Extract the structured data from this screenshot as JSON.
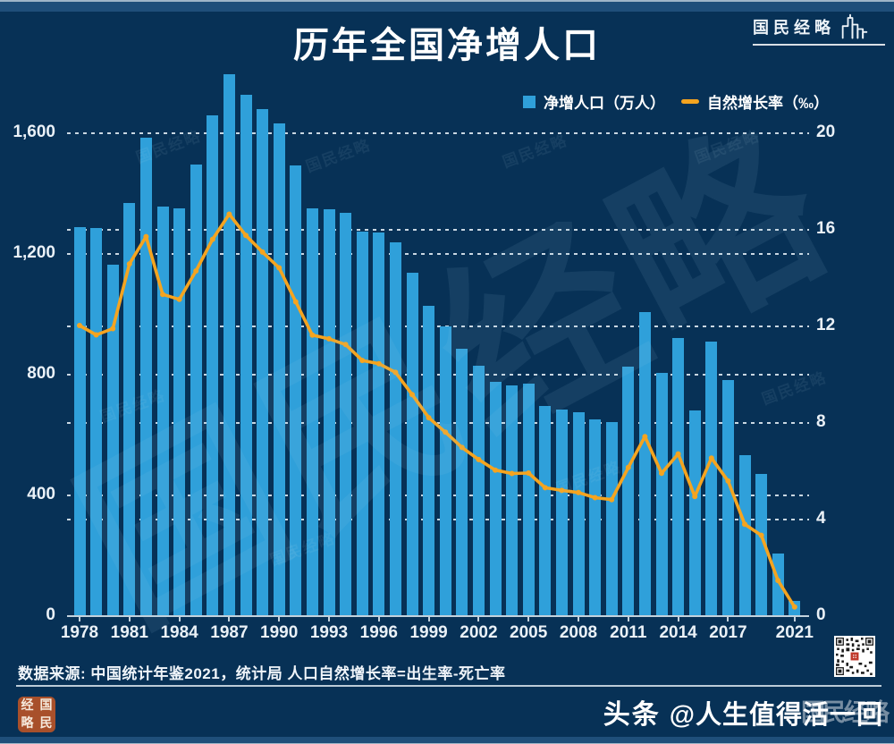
{
  "colors": {
    "bg": "#073156",
    "band": "#1F4F7A",
    "band_edge": "#9FB6C8",
    "bar": "#2FA0DA",
    "line": "#F5A41F",
    "text": "#EAF1F7",
    "grid": "rgba(235,244,250,0.85)",
    "axis": "#C3D2DD",
    "seal_bg": "#A8502B",
    "qr_center_red": "#C0392B"
  },
  "header": {
    "title": "历年全国净增人口",
    "logo_text": "国民经略"
  },
  "legend": {
    "items": [
      {
        "label": "净增人口（万人）",
        "swatch": "blue-square"
      },
      {
        "label": "自然增长率（‰）",
        "swatch": "orange-dash"
      }
    ]
  },
  "chart_data": {
    "type": "bar+line",
    "title": "历年全国净增人口",
    "x": [
      1978,
      1979,
      1980,
      1981,
      1982,
      1983,
      1984,
      1985,
      1986,
      1987,
      1988,
      1989,
      1990,
      1991,
      1992,
      1993,
      1994,
      1995,
      1996,
      1997,
      1998,
      1999,
      2000,
      2001,
      2002,
      2003,
      2004,
      2005,
      2006,
      2007,
      2008,
      2009,
      2010,
      2011,
      2012,
      2013,
      2014,
      2015,
      2016,
      2017,
      2018,
      2019,
      2020,
      2021
    ],
    "x_tick_labels": [
      1978,
      1981,
      1984,
      1987,
      1990,
      1993,
      1996,
      1999,
      2002,
      2005,
      2008,
      2011,
      2014,
      2017,
      2021
    ],
    "series": [
      {
        "name": "净增人口（万人）",
        "type": "bar",
        "axis": "left",
        "unit": "万人",
        "values": [
          1285,
          1283,
          1163,
          1367,
          1582,
          1354,
          1349,
          1494,
          1656,
          1793,
          1726,
          1678,
          1629,
          1490,
          1348,
          1346,
          1333,
          1271,
          1268,
          1237,
          1135,
          1025,
          957,
          884,
          826,
          774,
          761,
          768,
          692,
          681,
          673,
          648,
          641,
          825,
          1006,
          804,
          920,
          680,
          906,
          779,
          530,
          467,
          204,
          48
        ]
      },
      {
        "name": "自然增长率（‰）",
        "type": "line",
        "axis": "right",
        "unit": "‰",
        "values": [
          12.0,
          11.61,
          11.87,
          14.55,
          15.68,
          13.29,
          13.08,
          14.26,
          15.57,
          16.61,
          15.73,
          15.04,
          14.39,
          12.98,
          11.6,
          11.45,
          11.21,
          10.55,
          10.42,
          10.06,
          9.14,
          8.18,
          7.58,
          6.95,
          6.45,
          6.01,
          5.87,
          5.89,
          5.28,
          5.17,
          5.08,
          4.87,
          4.79,
          6.12,
          7.4,
          5.88,
          6.68,
          4.92,
          6.51,
          5.56,
          3.77,
          3.31,
          1.44,
          0.34
        ]
      }
    ],
    "left_axis": {
      "max": 1600,
      "tick_values": [
        1600,
        1200,
        800,
        400,
        0
      ],
      "tick_labels": [
        "1,600",
        "1,200",
        "800",
        "400",
        "0"
      ]
    },
    "right_axis": {
      "max": 20,
      "tick_values": [
        20,
        16,
        12,
        8,
        4,
        0
      ],
      "tick_labels": [
        "20",
        "16",
        "12",
        "8",
        "4",
        "0"
      ]
    },
    "grid": "horizontal dashed lines for both axis scales",
    "legend_position": "top-right"
  },
  "watermark": {
    "text": "国民经略"
  },
  "footer": {
    "source": "数据来源: 中国统计年鉴2021，统计局  人口自然增长率=出生率-死亡率",
    "seal_chars": [
      "经",
      "国",
      "略",
      "民"
    ],
    "platform": "头条",
    "handle": "@人生值得活一回",
    "handle_overlay": "国民经略"
  }
}
